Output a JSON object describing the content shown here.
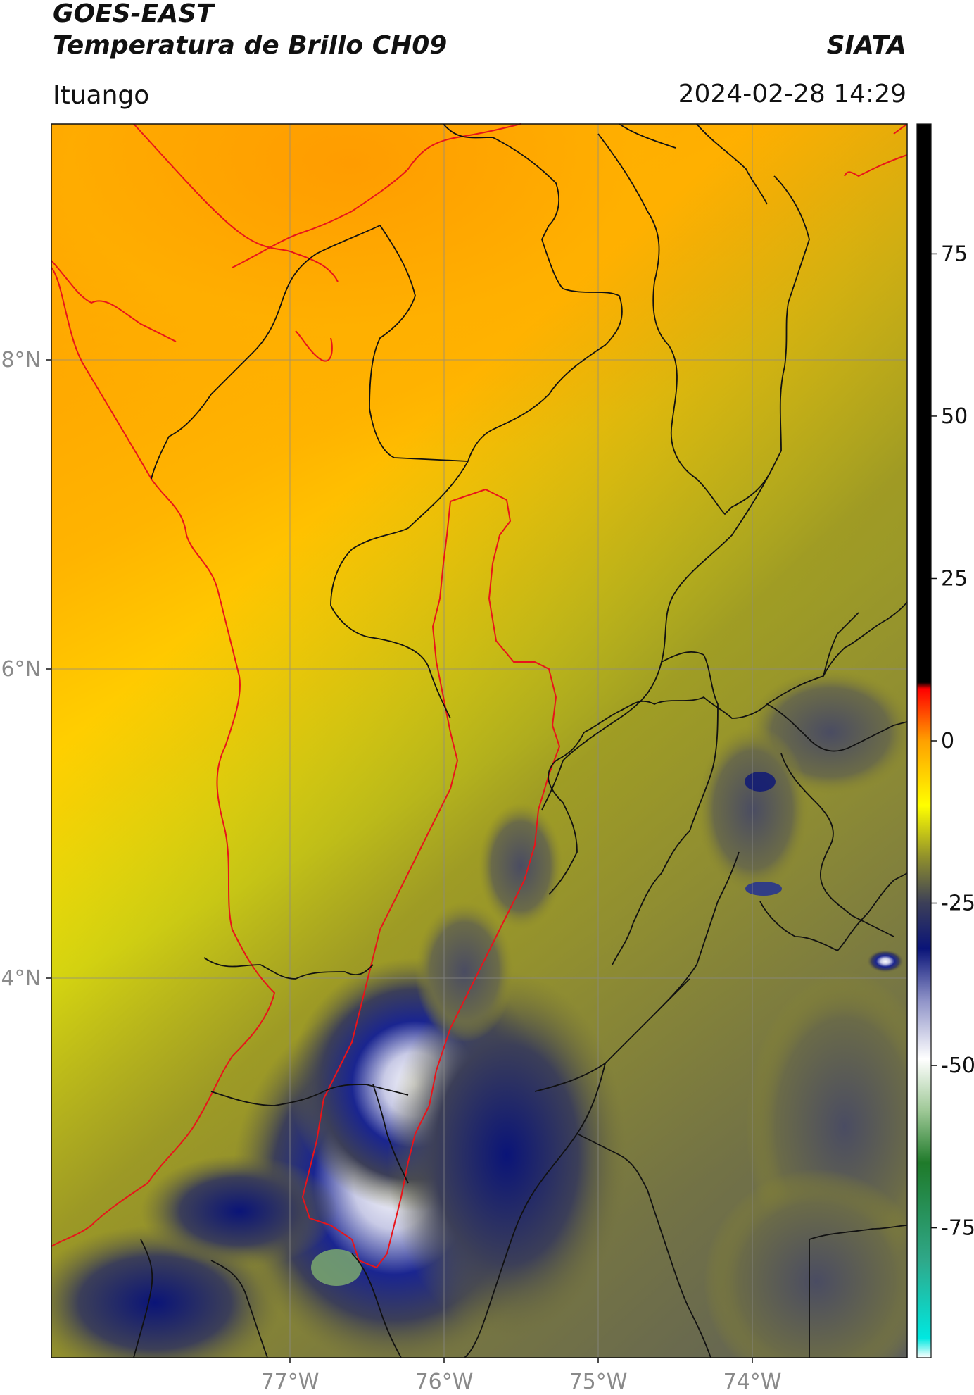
{
  "header": {
    "satellite": "GOES-EAST",
    "product": "Temperatura de Brillo CH09",
    "agency": "SIATA",
    "region": "Ituango",
    "datetime": "2024-02-28 14:29"
  },
  "map": {
    "lat_ticks": [
      "8°N",
      "6°N",
      "4°N"
    ],
    "lon_ticks": [
      "77°W",
      "76°W",
      "75°W",
      "74°W"
    ],
    "extent": {
      "lon_min": -78.55,
      "lon_max": -73.0,
      "lat_min": 1.45,
      "lat_max": 9.55
    },
    "colors": {
      "boundaries": "#111111",
      "coastline_and_basin": "#e8141a",
      "gridlines": "#8a8a8a"
    }
  },
  "colorbar": {
    "tick_labels": [
      "75",
      "50",
      "25",
      "0",
      "-25",
      "-50",
      "-75"
    ],
    "ticks": [
      75,
      50,
      25,
      0,
      -25,
      -50,
      -75
    ],
    "range": [
      -95,
      95
    ],
    "stops": [
      {
        "v": -95,
        "color": "#ffffff"
      },
      {
        "v": -92,
        "color": "#00e8e0"
      },
      {
        "v": -80,
        "color": "#2fa889"
      },
      {
        "v": -65,
        "color": "#1f7a2a"
      },
      {
        "v": -57,
        "color": "#9ec896"
      },
      {
        "v": -49,
        "color": "#ffffff"
      },
      {
        "v": -40,
        "color": "#8f93c8"
      },
      {
        "v": -32,
        "color": "#0a1478"
      },
      {
        "v": -25,
        "color": "#3c3f58"
      },
      {
        "v": -18,
        "color": "#8f8f2c"
      },
      {
        "v": -10,
        "color": "#ffff00"
      },
      {
        "v": 0,
        "color": "#ffa000"
      },
      {
        "v": 8,
        "color": "#ff0000"
      },
      {
        "v": 9,
        "color": "#000000"
      },
      {
        "v": 95,
        "color": "#000000"
      }
    ]
  }
}
